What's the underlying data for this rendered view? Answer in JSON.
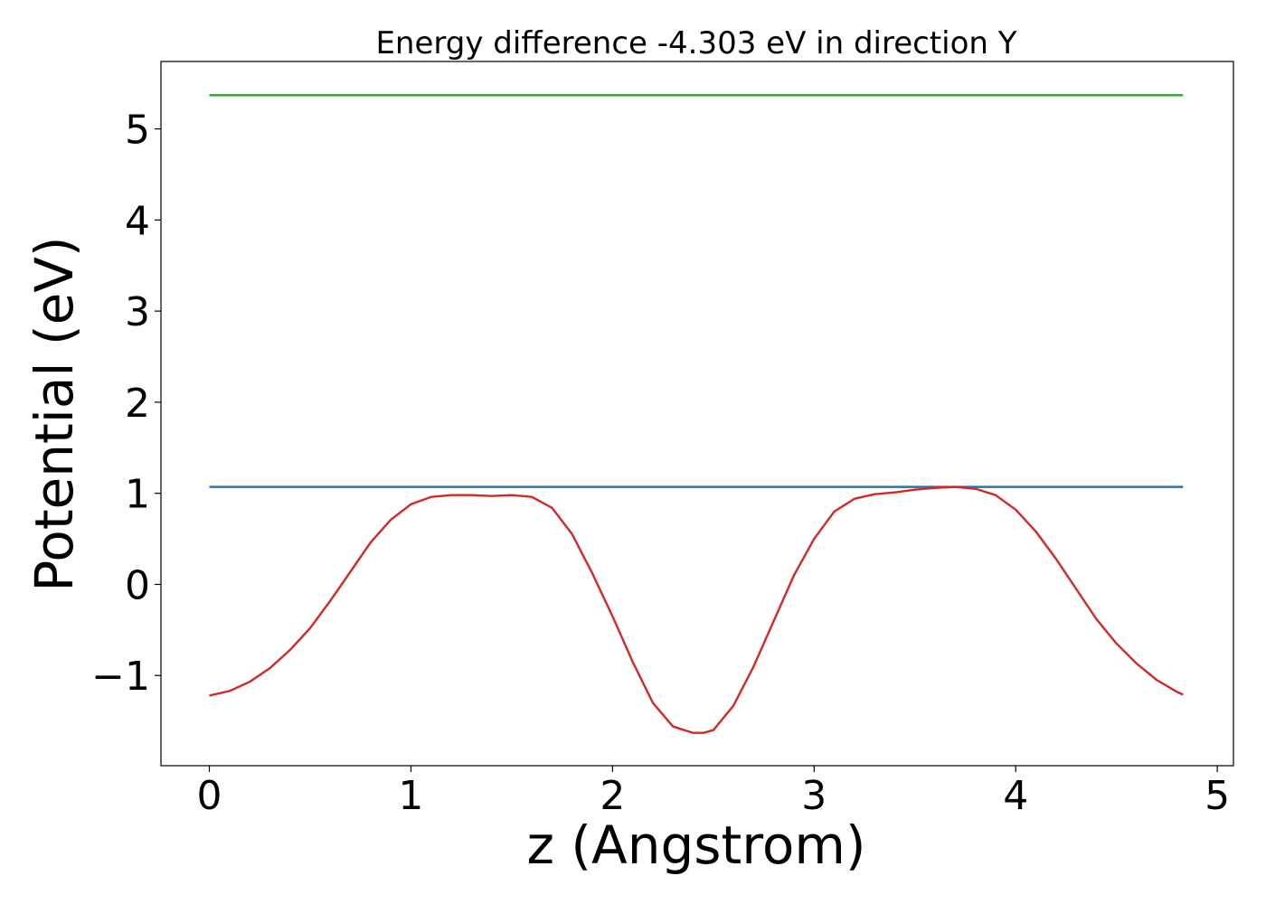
{
  "chart_data": {
    "type": "line",
    "title": "Energy difference -4.303 eV in direction Y",
    "xlabel": "z (Angstrom)",
    "ylabel": "Potential (eV)",
    "xlim": [
      -0.24,
      5.08
    ],
    "ylim": [
      -1.99,
      5.74
    ],
    "xticks": [
      0,
      1,
      2,
      3,
      4,
      5
    ],
    "yticks": [
      -1,
      0,
      1,
      2,
      3,
      4,
      5
    ],
    "ytick_labels": [
      "−1",
      "0",
      "1",
      "2",
      "3",
      "4",
      "5"
    ],
    "xtick_labels": [
      "0",
      "1",
      "2",
      "3",
      "4",
      "5"
    ],
    "grid": false,
    "series": [
      {
        "color": "#2ca02c",
        "x": [
          0,
          4.83
        ],
        "y": [
          5.37,
          5.37
        ]
      },
      {
        "color": "#1f77b4",
        "x": [
          0,
          4.83
        ],
        "y": [
          1.07,
          1.07
        ]
      },
      {
        "color": "#d62728",
        "x": [
          0,
          0.1,
          0.2,
          0.3,
          0.4,
          0.5,
          0.6,
          0.7,
          0.8,
          0.9,
          1.0,
          1.1,
          1.2,
          1.3,
          1.4,
          1.5,
          1.6,
          1.7,
          1.8,
          1.9,
          2.0,
          2.1,
          2.2,
          2.3,
          2.4,
          2.45,
          2.5,
          2.6,
          2.7,
          2.8,
          2.9,
          3.0,
          3.1,
          3.2,
          3.3,
          3.4,
          3.5,
          3.6,
          3.7,
          3.8,
          3.9,
          4.0,
          4.1,
          4.2,
          4.3,
          4.4,
          4.5,
          4.6,
          4.7,
          4.8,
          4.83
        ],
        "y": [
          -1.22,
          -1.17,
          -1.07,
          -0.92,
          -0.72,
          -0.48,
          -0.18,
          0.14,
          0.46,
          0.71,
          0.88,
          0.96,
          0.98,
          0.98,
          0.97,
          0.98,
          0.96,
          0.84,
          0.55,
          0.12,
          -0.35,
          -0.85,
          -1.3,
          -1.56,
          -1.63,
          -1.63,
          -1.6,
          -1.33,
          -0.9,
          -0.4,
          0.1,
          0.5,
          0.8,
          0.94,
          0.99,
          1.01,
          1.04,
          1.06,
          1.07,
          1.05,
          0.98,
          0.82,
          0.58,
          0.28,
          -0.05,
          -0.38,
          -0.65,
          -0.87,
          -1.05,
          -1.18,
          -1.21
        ]
      }
    ]
  }
}
